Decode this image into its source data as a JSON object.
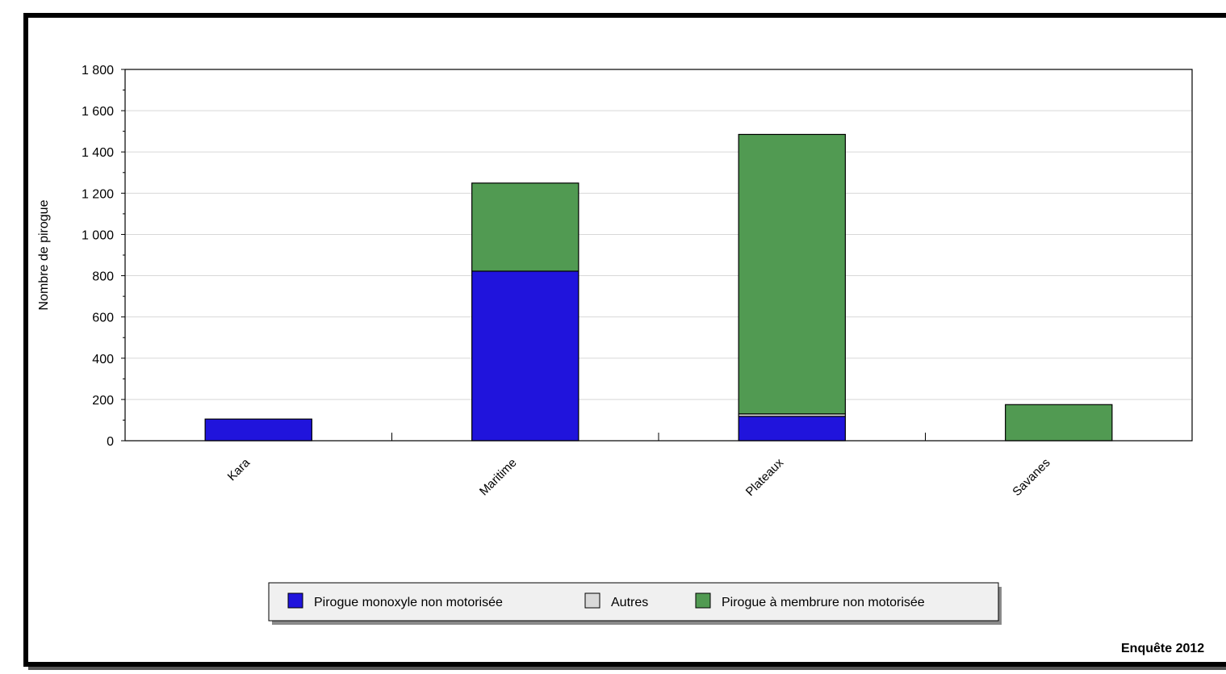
{
  "chart_data": {
    "type": "bar",
    "stacked": true,
    "categories": [
      "Kara",
      "Maritime",
      "Plateaux",
      "Savanes"
    ],
    "series": [
      {
        "name": "Pirogue monoxyle non motorisée",
        "color": "#2014dc",
        "values": [
          105,
          822,
          118,
          0
        ]
      },
      {
        "name": "Autres",
        "color": "#d9d9d9",
        "values": [
          0,
          0,
          12,
          0
        ]
      },
      {
        "name": "Pirogue à membrure non motorisée",
        "color": "#519a52",
        "values": [
          0,
          427,
          1355,
          175
        ]
      }
    ],
    "title": "",
    "xlabel": "",
    "ylabel": "Nombre de pirogue",
    "ylim": [
      0,
      1800
    ],
    "yticks": [
      "0",
      "200",
      "400",
      "600",
      "800",
      "1 000",
      "1 200",
      "1 400",
      "1 600",
      "1 800"
    ],
    "grid": true,
    "legend_position": "bottom"
  },
  "footer": {
    "source_label": "Enquête 2012"
  }
}
